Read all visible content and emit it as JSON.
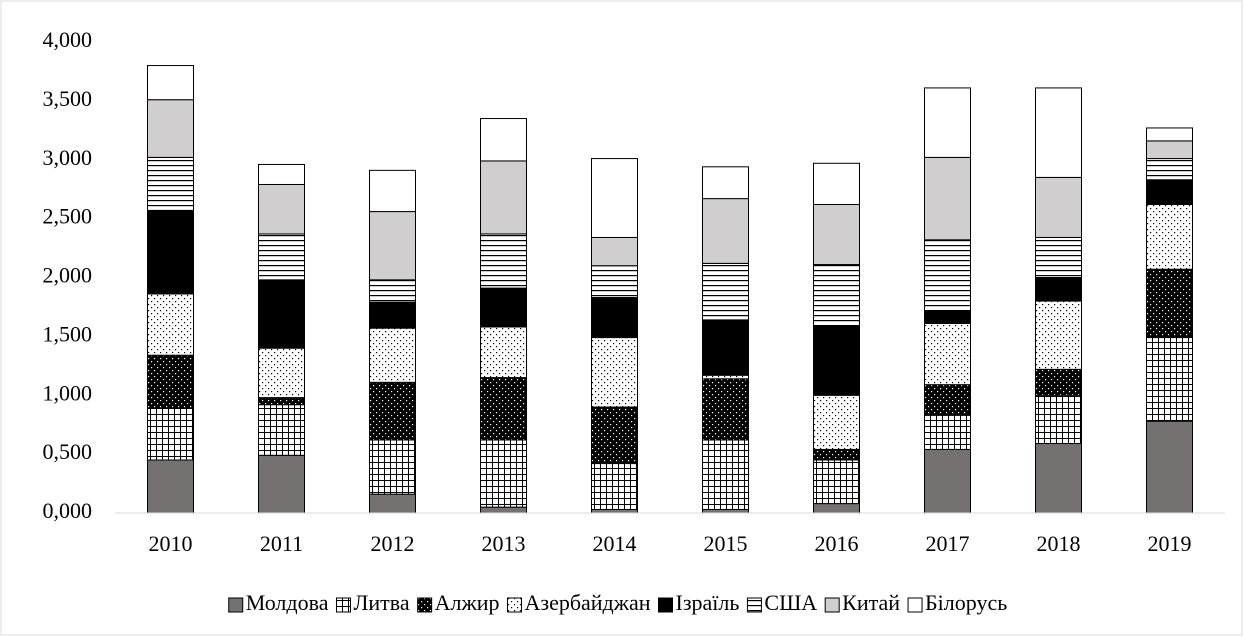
{
  "chart_data": {
    "type": "stacked_bar",
    "categories": [
      "2010",
      "2011",
      "2012",
      "2013",
      "2014",
      "2015",
      "2016",
      "2017",
      "2018",
      "2019"
    ],
    "series": [
      {
        "name": "Молдова",
        "color": "#767171",
        "values": [
          0.45,
          0.49,
          0.16,
          0.05,
          0.03,
          0.03,
          0.08,
          0.54,
          0.59,
          0.78
        ]
      },
      {
        "name": "Литва",
        "color": "#ffffff",
        "values": [
          0.44,
          0.43,
          0.46,
          0.57,
          0.39,
          0.59,
          0.37,
          0.29,
          0.41,
          0.71
        ]
      },
      {
        "name": "Алжир",
        "color": "#000000",
        "values": [
          0.45,
          0.06,
          0.49,
          0.53,
          0.48,
          0.52,
          0.09,
          0.26,
          0.22,
          0.58
        ]
      },
      {
        "name": "Азербайджан",
        "color": "#ffffff",
        "values": [
          0.52,
          0.42,
          0.46,
          0.43,
          0.59,
          0.03,
          0.46,
          0.52,
          0.58,
          0.55
        ]
      },
      {
        "name": "Ізраїль",
        "color": "#000000",
        "values": [
          0.71,
          0.58,
          0.22,
          0.33,
          0.34,
          0.47,
          0.59,
          0.11,
          0.2,
          0.21
        ]
      },
      {
        "name": "США",
        "color": "#ffffff",
        "values": [
          0.45,
          0.39,
          0.19,
          0.46,
          0.27,
          0.48,
          0.52,
          0.6,
          0.34,
          0.18
        ]
      },
      {
        "name": "Китай",
        "color": "#d0cece",
        "values": [
          0.49,
          0.42,
          0.58,
          0.62,
          0.24,
          0.55,
          0.51,
          0.7,
          0.51,
          0.15
        ]
      },
      {
        "name": "Білорусь",
        "color": "#ffffff",
        "values": [
          0.29,
          0.17,
          0.35,
          0.36,
          0.67,
          0.27,
          0.35,
          0.59,
          0.76,
          0.11
        ]
      }
    ],
    "ylim": [
      0,
      4
    ],
    "yticks": [
      {
        "value": 0,
        "label": "0,000"
      },
      {
        "value": 0.5,
        "label": "0,500"
      },
      {
        "value": 1,
        "label": "1,000"
      },
      {
        "value": 1.5,
        "label": "1,500"
      },
      {
        "value": 2,
        "label": "2,000"
      },
      {
        "value": 2.5,
        "label": "2,500"
      },
      {
        "value": 3,
        "label": "3,000"
      },
      {
        "value": 3.5,
        "label": "3,500"
      },
      {
        "value": 4,
        "label": "4,000"
      }
    ],
    "grid": false,
    "legend": "bottom"
  }
}
